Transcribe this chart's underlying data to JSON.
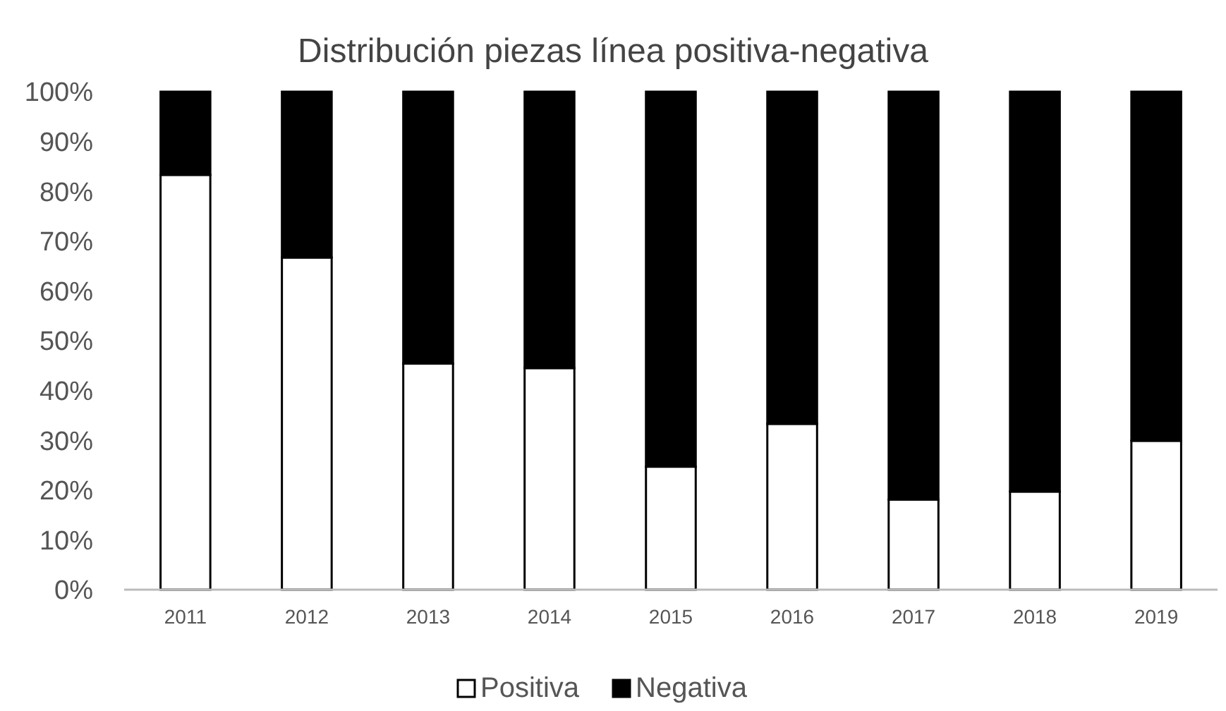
{
  "chart_data": {
    "type": "bar",
    "title": "Distribución piezas línea positiva-negativa",
    "categories": [
      "2011",
      "2012",
      "2013",
      "2014",
      "2015",
      "2016",
      "2017",
      "2018",
      "2019"
    ],
    "stacked": true,
    "series": [
      {
        "name": "Positiva",
        "color": "#ffffff",
        "values": [
          83.3,
          66.7,
          45.4,
          44.5,
          24.7,
          33.3,
          18.1,
          19.7,
          29.9
        ]
      },
      {
        "name": "Negativa",
        "color": "#000000",
        "values": [
          16.7,
          33.3,
          54.6,
          55.5,
          75.3,
          66.7,
          81.9,
          80.3,
          70.1
        ]
      }
    ],
    "ylim": [
      0,
      100
    ],
    "yticks": [
      {
        "value": 0,
        "label": "0%"
      },
      {
        "value": 10,
        "label": "10%"
      },
      {
        "value": 20,
        "label": "20%"
      },
      {
        "value": 30,
        "label": "30%"
      },
      {
        "value": 40,
        "label": "40%"
      },
      {
        "value": 50,
        "label": "50%"
      },
      {
        "value": 60,
        "label": "60%"
      },
      {
        "value": 70,
        "label": "70%"
      },
      {
        "value": 80,
        "label": "80%"
      },
      {
        "value": 90,
        "label": "90%"
      },
      {
        "value": 100,
        "label": "100%"
      }
    ],
    "grid": false,
    "legend": "bottom"
  }
}
